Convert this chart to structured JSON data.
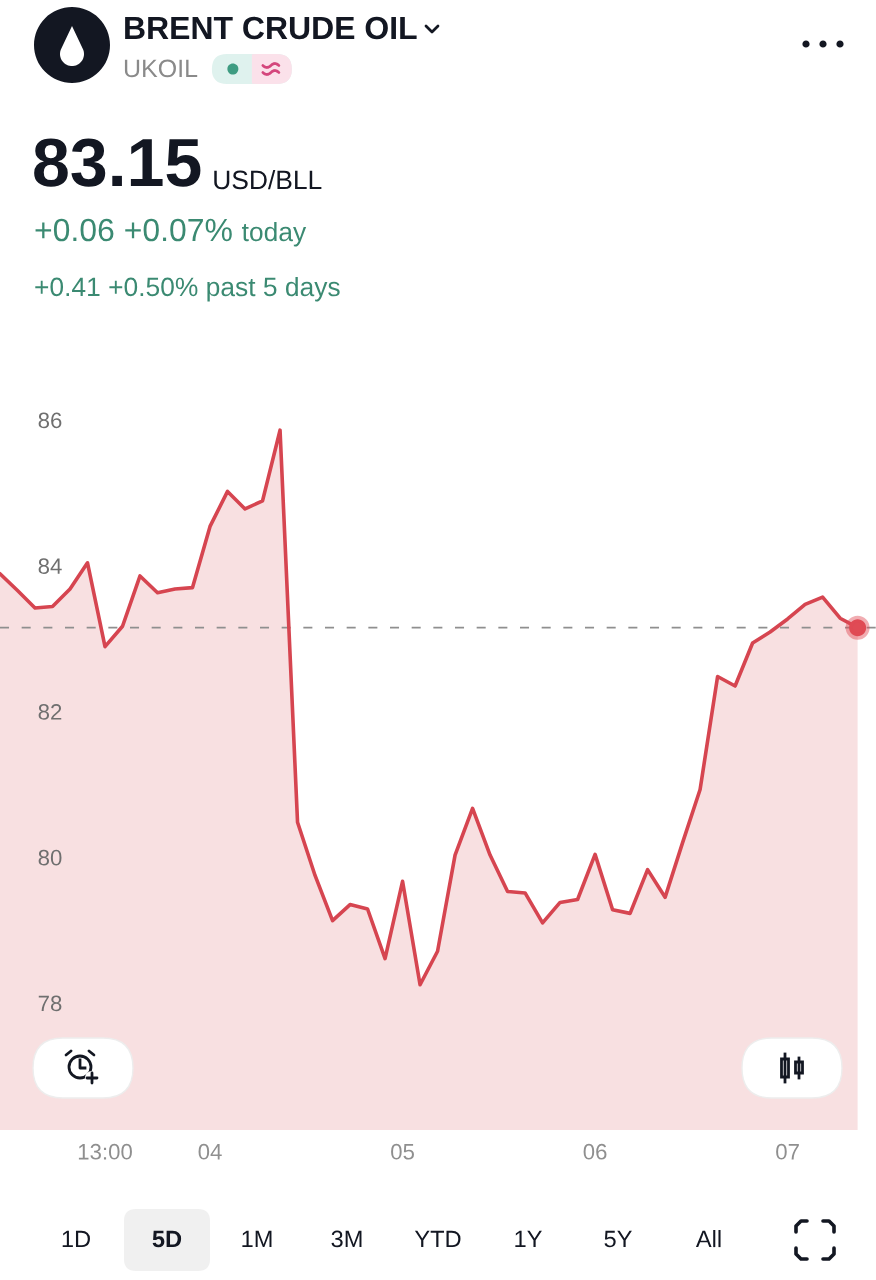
{
  "chart_data": {
    "type": "area",
    "title": "BRENT CRUDE OIL",
    "subtitle": "UKOIL",
    "annotations": [
      "83.15",
      "USD/BLL",
      "+0.06 +0.07%",
      "today",
      "+0.41 +0.50% past 5 days",
      "1D",
      "5D",
      "1M",
      "3M",
      "YTD",
      "1Y",
      "5Y",
      "All"
    ],
    "categories": [
      null,
      null,
      null,
      null,
      null,
      null,
      "13:00",
      null,
      null,
      null,
      null,
      null,
      "04",
      null,
      null,
      null,
      null,
      null,
      null,
      null,
      null,
      null,
      null,
      "05",
      null,
      null,
      null,
      null,
      null,
      null,
      null,
      null,
      null,
      null,
      "06",
      null,
      null,
      null,
      null,
      null,
      null,
      null,
      null,
      null,
      null,
      "07",
      null,
      null,
      null,
      null
    ],
    "ylim": [
      78,
      86
    ],
    "yticks": [
      78,
      80,
      82,
      84,
      86
    ],
    "series": [
      {
        "color": "#d64550",
        "values": [
          83.89,
          83.66,
          83.42,
          83.44,
          83.68,
          84.04,
          82.89,
          83.17,
          83.86,
          83.63,
          83.68,
          83.7,
          84.54,
          85.02,
          84.78,
          84.89,
          85.86,
          80.48,
          79.75,
          79.13,
          79.35,
          79.29,
          78.61,
          79.67,
          78.25,
          78.71,
          80.03,
          80.67,
          80.03,
          79.53,
          79.51,
          79.1,
          79.38,
          79.42,
          80.04,
          79.28,
          79.23,
          79.83,
          79.45,
          80.2,
          80.93,
          82.48,
          82.35,
          82.94,
          83.09,
          83.27,
          83.47,
          83.57,
          83.28,
          83.15
        ]
      },
      {
        "type": "scatter",
        "color": "#e04b55",
        "marker": "circle",
        "values": [
          null,
          null,
          null,
          null,
          null,
          null,
          null,
          null,
          null,
          null,
          null,
          null,
          null,
          null,
          null,
          null,
          null,
          null,
          null,
          null,
          null,
          null,
          null,
          null,
          null,
          null,
          null,
          null,
          null,
          null,
          null,
          null,
          null,
          null,
          null,
          null,
          null,
          null,
          null,
          null,
          null,
          null,
          null,
          null,
          null,
          null,
          null,
          null,
          null,
          83.15
        ]
      }
    ],
    "ref_lines": [
      {
        "axis": "y",
        "value": 83.15,
        "color": "#8f8f8f",
        "line_style": "dashed"
      }
    ]
  }
}
